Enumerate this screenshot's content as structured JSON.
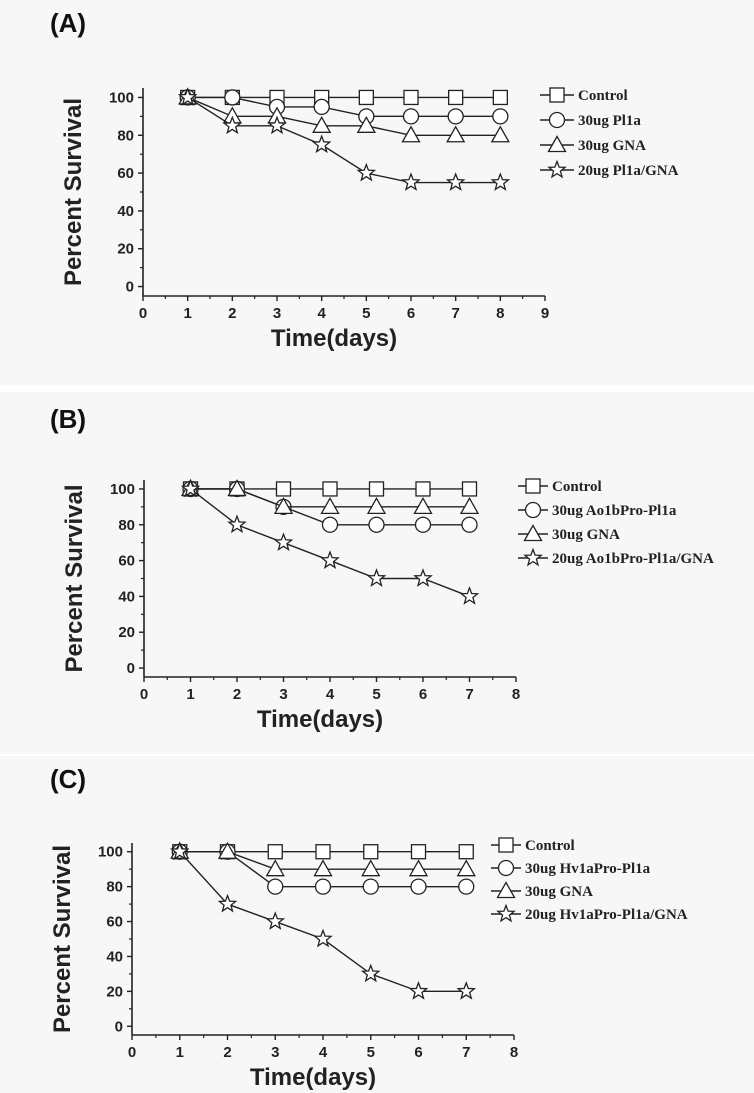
{
  "figure": {
    "panels": [
      "(A)",
      "(B)",
      "(C)"
    ]
  },
  "colors": {
    "line": "#222222",
    "marker_fill": "#ffffff",
    "background": "#f7f7f7"
  },
  "chart_data": [
    {
      "type": "line",
      "panel_label": "(A)",
      "xlabel": "Time(days)",
      "ylabel": "Percent Survival",
      "xlim": [
        0,
        9
      ],
      "ylim": [
        0,
        105
      ],
      "xticks": [
        0,
        1,
        2,
        3,
        4,
        5,
        6,
        7,
        8,
        9
      ],
      "yticks": [
        0,
        20,
        40,
        60,
        80,
        100
      ],
      "legend_position": "right",
      "x": [
        1,
        2,
        3,
        4,
        5,
        6,
        7,
        8
      ],
      "series": [
        {
          "name": "Control",
          "marker": "square",
          "values": [
            100,
            100,
            100,
            100,
            100,
            100,
            100,
            100
          ]
        },
        {
          "name": "30ug Pl1a",
          "marker": "circle",
          "values": [
            100,
            100,
            95,
            95,
            90,
            90,
            90,
            90
          ]
        },
        {
          "name": "30ug GNA",
          "marker": "triangle",
          "values": [
            100,
            90,
            90,
            85,
            85,
            80,
            80,
            80
          ]
        },
        {
          "name": "20ug Pl1a/GNA",
          "marker": "star",
          "values": [
            100,
            85,
            85,
            75,
            60,
            55,
            55,
            55
          ]
        }
      ]
    },
    {
      "type": "line",
      "panel_label": "(B)",
      "xlabel": "Time(days)",
      "ylabel": "Percent Survival",
      "xlim": [
        0,
        8
      ],
      "ylim": [
        0,
        105
      ],
      "xticks": [
        0,
        1,
        2,
        3,
        4,
        5,
        6,
        7,
        8
      ],
      "yticks": [
        0,
        20,
        40,
        60,
        80,
        100
      ],
      "legend_position": "right",
      "x": [
        1,
        2,
        3,
        4,
        5,
        6,
        7
      ],
      "series": [
        {
          "name": "Control",
          "marker": "square",
          "values": [
            100,
            100,
            100,
            100,
            100,
            100,
            100
          ]
        },
        {
          "name": "30ug Ao1bPro-Pl1a",
          "marker": "circle",
          "values": [
            100,
            100,
            90,
            80,
            80,
            80,
            80
          ]
        },
        {
          "name": "30ug GNA",
          "marker": "triangle",
          "values": [
            100,
            100,
            90,
            90,
            90,
            90,
            90
          ]
        },
        {
          "name": "20ug Ao1bPro-Pl1a/GNA",
          "marker": "star",
          "values": [
            100,
            80,
            70,
            60,
            50,
            50,
            40
          ]
        }
      ]
    },
    {
      "type": "line",
      "panel_label": "(C)",
      "xlabel": "Time(days)",
      "ylabel": "Percent Survival",
      "xlim": [
        0,
        8
      ],
      "ylim": [
        0,
        105
      ],
      "xticks": [
        0,
        1,
        2,
        3,
        4,
        5,
        6,
        7,
        8
      ],
      "yticks": [
        0,
        20,
        40,
        60,
        80,
        100
      ],
      "legend_position": "right",
      "x": [
        1,
        2,
        3,
        4,
        5,
        6,
        7
      ],
      "series": [
        {
          "name": "Control",
          "marker": "square",
          "values": [
            100,
            100,
            100,
            100,
            100,
            100,
            100
          ]
        },
        {
          "name": "30ug Hv1aPro-Pl1a",
          "marker": "circle",
          "values": [
            100,
            100,
            80,
            80,
            80,
            80,
            80
          ]
        },
        {
          "name": "30ug GNA",
          "marker": "triangle",
          "values": [
            100,
            100,
            90,
            90,
            90,
            90,
            90
          ]
        },
        {
          "name": "20ug Hv1aPro-Pl1a/GNA",
          "marker": "star",
          "values": [
            100,
            70,
            60,
            50,
            30,
            20,
            20
          ]
        }
      ]
    }
  ]
}
